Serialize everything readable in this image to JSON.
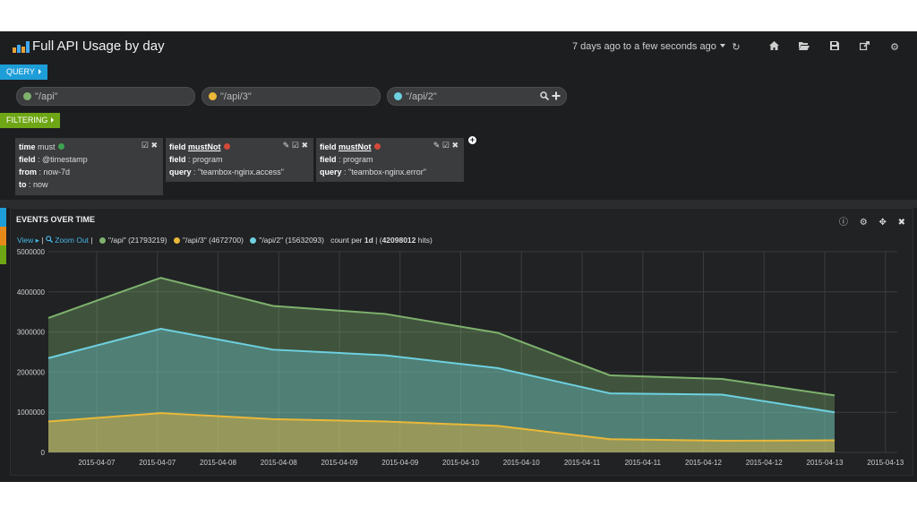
{
  "header": {
    "title": "Full API Usage by day",
    "time_range": "7 days ago to a few seconds ago",
    "icons": [
      "refresh-icon",
      "home-icon",
      "folder-open-icon",
      "save-icon",
      "share-icon",
      "gear-icon"
    ]
  },
  "query_row": {
    "tab_label": "QUERY",
    "queries": [
      {
        "text": "\"/api\"",
        "color": "#7eb26d"
      },
      {
        "text": "\"/api/3\"",
        "color": "#eab839"
      },
      {
        "text": "\"/api/2\"",
        "color": "#6ed0e0"
      }
    ]
  },
  "filter_row": {
    "tab_label": "FILTERING",
    "filters": [
      {
        "line1_key": "time",
        "line1_val": "must",
        "status_color": "#3ea24e",
        "lines": [
          {
            "k": "field",
            "v": " : @timestamp"
          },
          {
            "k": "from",
            "v": " : now-7d"
          },
          {
            "k": "to",
            "v": " : now"
          }
        ]
      },
      {
        "line1_key": "field",
        "line1_val": "mustNot",
        "status_color": "#d44a3a",
        "lines": [
          {
            "k": "field",
            "v": " : program"
          },
          {
            "k": "query",
            "v": " : \"teambox-nginx.access\""
          }
        ]
      },
      {
        "line1_key": "field",
        "line1_val": "mustNot",
        "status_color": "#d44a3a",
        "lines": [
          {
            "k": "field",
            "v": " : program"
          },
          {
            "k": "query",
            "v": " : \"teambox-nginx.error\""
          }
        ]
      }
    ]
  },
  "panel": {
    "title": "EVENTS OVER TIME",
    "view_label": "View",
    "zoom_label": "Zoom Out",
    "legend": [
      {
        "label": "\"/api\" (21793219)",
        "color": "#7eb26d"
      },
      {
        "label": "\"/api/3\" (4672700)",
        "color": "#eab839"
      },
      {
        "label": "\"/api/2\" (15632093)",
        "color": "#6ed0e0"
      }
    ],
    "count_prefix": "count per ",
    "interval": "1d",
    "hits_prefix": " | (",
    "hits": "42098012",
    "hits_suffix": " hits)"
  },
  "chart_data": {
    "type": "area",
    "x_labels": [
      "2015-04-07",
      "2015-04-07",
      "2015-04-08",
      "2015-04-08",
      "2015-04-09",
      "2015-04-09",
      "2015-04-10",
      "2015-04-10",
      "2015-04-11",
      "2015-04-11",
      "2015-04-12",
      "2015-04-12",
      "2015-04-13",
      "2015-04-13"
    ],
    "y_ticks": [
      0,
      1000000,
      2000000,
      3000000,
      4000000,
      5000000
    ],
    "ylim": [
      0,
      5000000
    ],
    "grid": true,
    "series": [
      {
        "name": "\"/api\"",
        "color": "#7eb26d",
        "values": [
          3350000,
          4350000,
          3650000,
          3450000,
          2980000,
          1920000,
          1830000,
          1420000
        ]
      },
      {
        "name": "\"/api/2\"",
        "color": "#6ed0e0",
        "values": [
          2350000,
          3080000,
          2560000,
          2420000,
          2100000,
          1470000,
          1440000,
          1000000
        ]
      },
      {
        "name": "\"/api/3\"",
        "color": "#eab839",
        "values": [
          770000,
          980000,
          830000,
          770000,
          660000,
          330000,
          290000,
          300000
        ]
      }
    ]
  }
}
